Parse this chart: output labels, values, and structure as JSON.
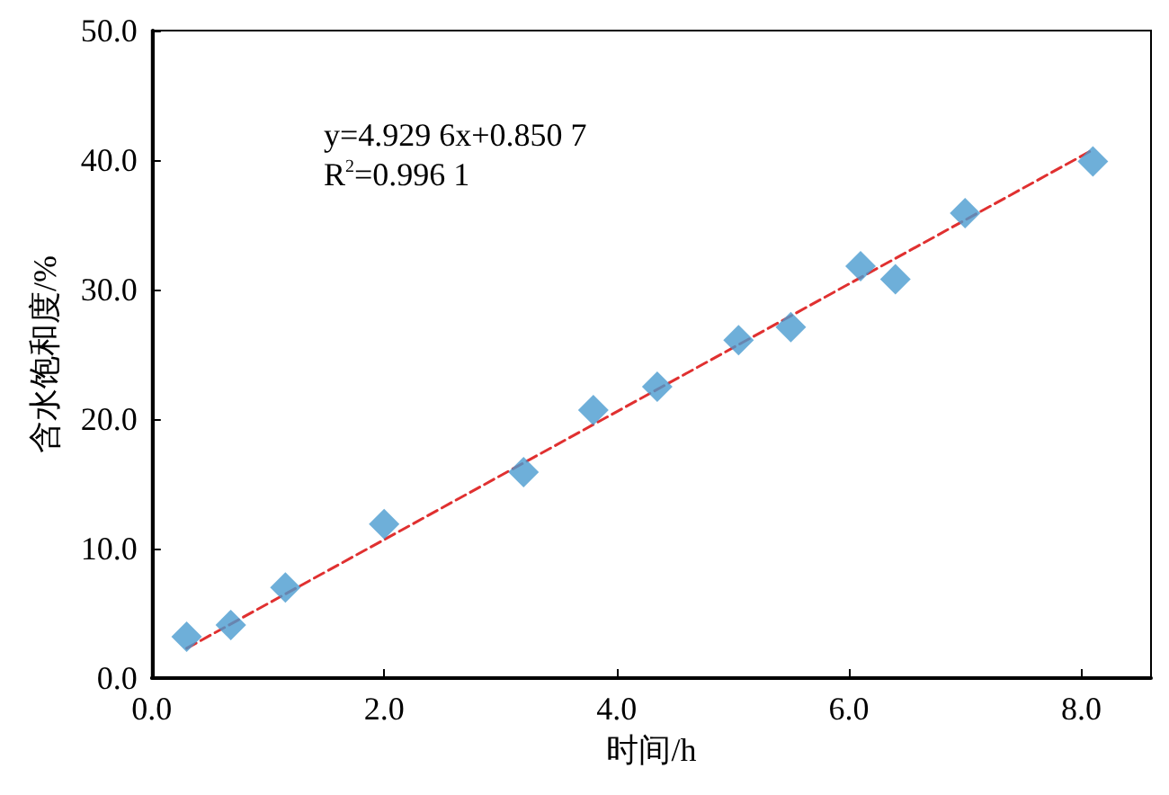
{
  "chart_data": {
    "type": "scatter",
    "xlabel": "时间/h",
    "ylabel": "含水饱和度/%",
    "annotations": [
      "y=4.929 6x+0.850 7",
      "R$^{2}$=0.996 1"
    ],
    "xlim": [
      0,
      8.6
    ],
    "ylim": [
      0,
      50
    ],
    "xticks": [
      {
        "value": 0,
        "label": "0.0"
      },
      {
        "value": 2,
        "label": "2.0"
      },
      {
        "value": 4,
        "label": "4.0"
      },
      {
        "value": 6,
        "label": "6.0"
      },
      {
        "value": 8,
        "label": "8.0"
      }
    ],
    "yticks": [
      {
        "value": 0,
        "label": "0.0"
      },
      {
        "value": 10,
        "label": "10.0"
      },
      {
        "value": 20,
        "label": "20.0"
      },
      {
        "value": 30,
        "label": "30.0"
      },
      {
        "value": 40,
        "label": "40.0"
      },
      {
        "value": 50,
        "label": "50.0"
      }
    ],
    "grid": false,
    "marker": "diamond",
    "series": [
      {
        "color": "#4a9bd0",
        "x": [
          0.3,
          0.68,
          1.15,
          2.0,
          3.2,
          3.8,
          4.35,
          5.05,
          5.5,
          6.1,
          6.4,
          7.0,
          8.1
        ],
        "values": [
          3.2,
          4.1,
          7.0,
          11.9,
          15.9,
          20.7,
          22.5,
          26.1,
          27.1,
          31.8,
          30.8,
          35.9,
          39.9
        ]
      },
      {
        "type": "line",
        "color": "#e03030",
        "line_style": "dashed",
        "marker": "none",
        "x": [
          0.3,
          8.1
        ],
        "values": [
          2.3,
          40.8
        ]
      }
    ]
  }
}
